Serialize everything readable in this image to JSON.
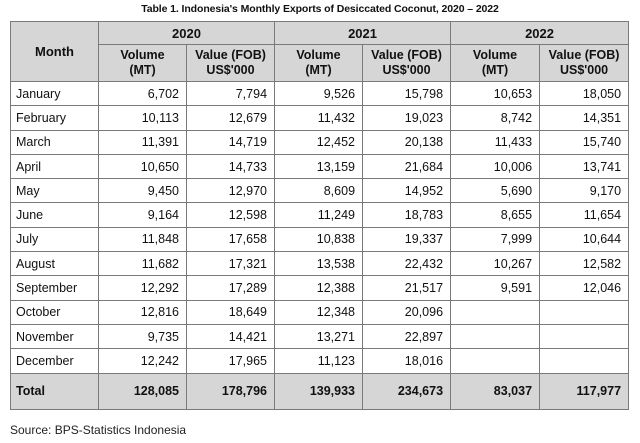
{
  "title": "Table 1. Indonesia's Monthly Exports of Desiccated Coconut, 2020 – 2022",
  "header": {
    "month": "Month",
    "years": [
      "2020",
      "2021",
      "2022"
    ],
    "volume_line1": "Volume",
    "volume_line2": "(MT)",
    "value_line1": "Value (FOB)",
    "value_line2": "US$'000"
  },
  "rows": [
    {
      "month": "January",
      "v2020": "6,702",
      "f2020": "7,794",
      "v2021": "9,526",
      "f2021": "15,798",
      "v2022": "10,653",
      "f2022": "18,050"
    },
    {
      "month": "February",
      "v2020": "10,113",
      "f2020": "12,679",
      "v2021": "11,432",
      "f2021": "19,023",
      "v2022": "8,742",
      "f2022": "14,351"
    },
    {
      "month": "March",
      "v2020": "11,391",
      "f2020": "14,719",
      "v2021": "12,452",
      "f2021": "20,138",
      "v2022": "11,433",
      "f2022": "15,740"
    },
    {
      "month": "April",
      "v2020": "10,650",
      "f2020": "14,733",
      "v2021": "13,159",
      "f2021": "21,684",
      "v2022": "10,006",
      "f2022": "13,741"
    },
    {
      "month": "May",
      "v2020": "9,450",
      "f2020": "12,970",
      "v2021": "8,609",
      "f2021": "14,952",
      "v2022": "5,690",
      "f2022": "9,170"
    },
    {
      "month": "June",
      "v2020": "9,164",
      "f2020": "12,598",
      "v2021": "11,249",
      "f2021": "18,783",
      "v2022": "8,655",
      "f2022": "11,654"
    },
    {
      "month": "July",
      "v2020": "11,848",
      "f2020": "17,658",
      "v2021": "10,838",
      "f2021": "19,337",
      "v2022": "7,999",
      "f2022": "10,644"
    },
    {
      "month": "August",
      "v2020": "11,682",
      "f2020": "17,321",
      "v2021": "13,538",
      "f2021": "22,432",
      "v2022": "10,267",
      "f2022": "12,582"
    },
    {
      "month": "September",
      "v2020": "12,292",
      "f2020": "17,289",
      "v2021": "12,388",
      "f2021": "21,517",
      "v2022": "9,591",
      "f2022": "12,046"
    },
    {
      "month": "October",
      "v2020": "12,816",
      "f2020": "18,649",
      "v2021": "12,348",
      "f2021": "20,096",
      "v2022": "",
      "f2022": ""
    },
    {
      "month": "November",
      "v2020": "9,735",
      "f2020": "14,421",
      "v2021": "13,271",
      "f2021": "22,897",
      "v2022": "",
      "f2022": ""
    },
    {
      "month": "December",
      "v2020": "12,242",
      "f2020": "17,965",
      "v2021": "11,123",
      "f2021": "18,016",
      "v2022": "",
      "f2022": ""
    }
  ],
  "total": {
    "label": "Total",
    "v2020": "128,085",
    "f2020": "178,796",
    "v2021": "139,933",
    "f2021": "234,673",
    "v2022": "83,037",
    "f2022": "117,977"
  },
  "source": "Source: BPS-Statistics Indonesia"
}
